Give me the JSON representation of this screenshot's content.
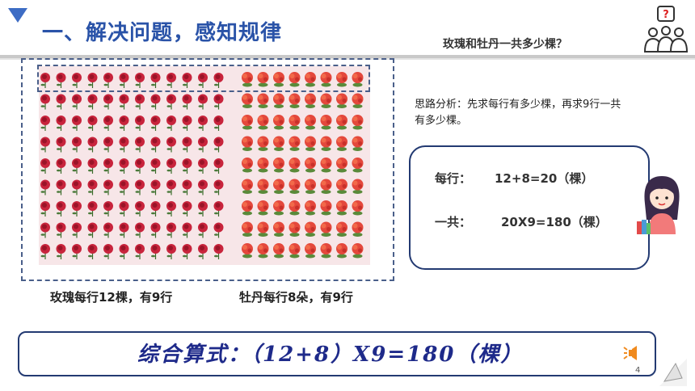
{
  "header": {
    "title": "一、解决问题，感知规律",
    "question": "玫瑰和牡丹一共多少棵？"
  },
  "picture": {
    "rose_caption": "玫瑰每行12棵，有9行",
    "peony_caption": "牡丹每行8朵，有9行",
    "rose_per_row": 12,
    "peony_per_row": 8,
    "rows": 9
  },
  "analysis": {
    "text": "思路分析：先求每行有多少棵，再求9行一共有多少棵。"
  },
  "calc": {
    "row_label": "每行：",
    "row_expr": "12+8=20（棵）",
    "total_label": "一共：",
    "total_expr": "20X9=180（棵）"
  },
  "formula": {
    "text": "综合算式：（12+8）X9=180（棵）"
  },
  "page": {
    "number": "4"
  },
  "colors": {
    "title_blue": "#2a53a8",
    "rose_red": "#c8243c",
    "peony_red": "#e4483c",
    "frame_navy": "#233a72"
  }
}
